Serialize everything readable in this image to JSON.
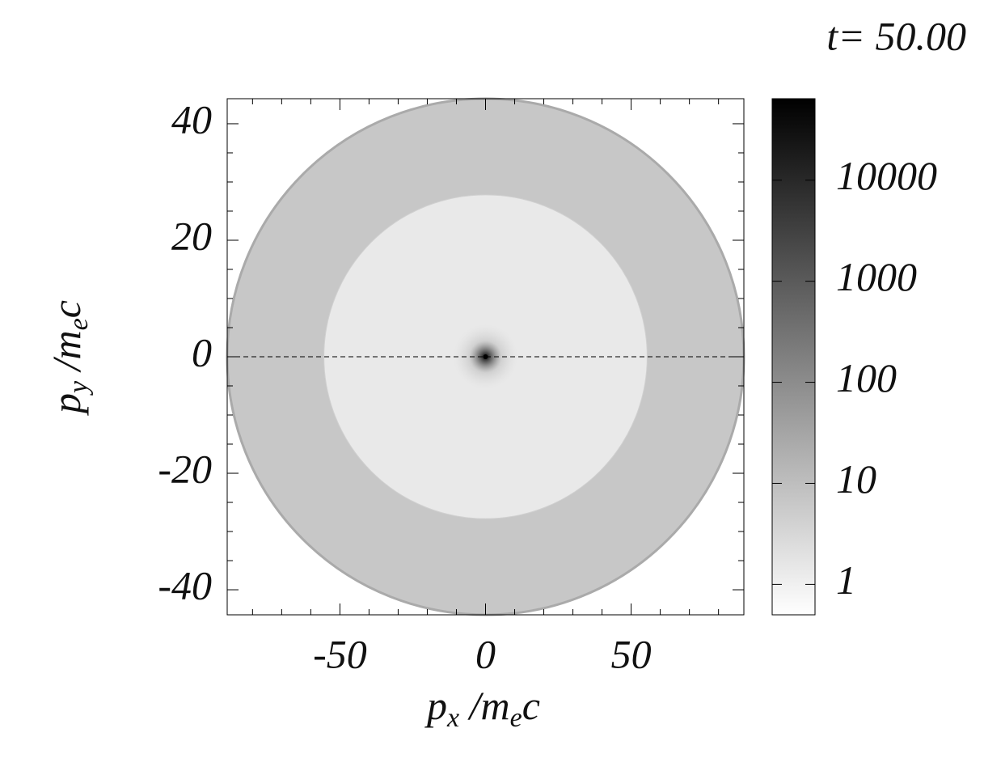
{
  "chart_data": {
    "type": "heatmap",
    "title": "t= 50.00",
    "xlabel": [
      "p",
      "x",
      " /m",
      "e",
      "c"
    ],
    "ylabel": [
      "p",
      "y",
      " /m",
      "e",
      "c"
    ],
    "xlim": [
      -88.7,
      88.7
    ],
    "ylim": [
      -44.3,
      44.3
    ],
    "xticks": [
      -50,
      0,
      50
    ],
    "yticks": [
      -40,
      -20,
      0,
      20,
      40
    ],
    "xminorticks": [
      -80,
      -70,
      -60,
      -40,
      -30,
      -20,
      -10,
      10,
      20,
      30,
      40,
      60,
      70,
      80
    ],
    "yminorticks": [
      -35,
      -30,
      -25,
      -15,
      -10,
      -5,
      5,
      10,
      15,
      25,
      30,
      35
    ],
    "regions": [
      {
        "rx": 88.7,
        "ry": 44.3,
        "value": 6.6
      },
      {
        "rx": 55.5,
        "ry": 27.8,
        "value": 1.4
      }
    ],
    "peak": {
      "x": 0,
      "y": 0,
      "value": 64000
    },
    "hline": 0,
    "colorbar": {
      "clim": [
        0.5,
        64000
      ],
      "log": true,
      "ticks": [
        1,
        10,
        100,
        1000,
        10000
      ]
    }
  }
}
